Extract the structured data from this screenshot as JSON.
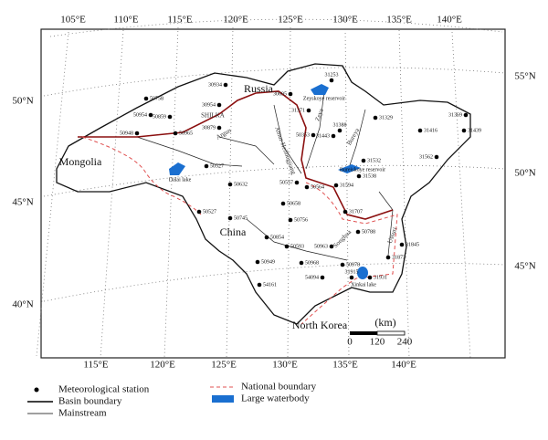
{
  "map": {
    "graticule": {
      "top": [
        "105°E",
        "110°E",
        "115°E",
        "120°E",
        "125°E",
        "130°E",
        "135°E",
        "140°E"
      ],
      "bottom": [
        "115°E",
        "120°E",
        "125°E",
        "130°E",
        "135°E",
        "140°E"
      ],
      "left": [
        "50°N",
        "45°N",
        "40°N"
      ],
      "right": [
        "55°N",
        "50°N",
        "45°N"
      ]
    },
    "countries": [
      "Russia",
      "Mongolia",
      "China",
      "North Korea"
    ],
    "rivers": [
      "SHILKA",
      "Argun",
      "Amur-Heilongjiang",
      "Zeya",
      "Bureya",
      "Songhua",
      "Ussuri"
    ],
    "water_bodies": [
      "Zeyskoye reservoir",
      "Bureiskoye reservoir",
      "Dalai lake",
      "Xinkai lake"
    ],
    "stations": [
      "30934",
      "50758",
      "30954",
      "50954",
      "50859",
      "30879",
      "50948",
      "50965",
      "50527",
      "50632",
      "50527",
      "30695",
      "31253",
      "31371",
      "50353",
      "31388",
      "31329",
      "31443",
      "31416",
      "31369",
      "31439",
      "31562",
      "31532",
      "31538",
      "31594",
      "50557",
      "50564",
      "50658",
      "50756",
      "50745",
      "31707",
      "50788",
      "50854",
      "50593",
      "50963",
      "31845",
      "31873",
      "50949",
      "50968",
      "50978",
      "54094",
      "54161",
      "31915",
      "31931"
    ],
    "scale": {
      "unit": "(km)",
      "ticks": [
        0,
        120,
        240
      ]
    },
    "legend": {
      "station": "Meteorological station",
      "basin_boundary": "Basin boundary",
      "mainstream": "Mainstream",
      "national_boundary": "National boundary",
      "waterbody": "Large waterbody"
    }
  }
}
